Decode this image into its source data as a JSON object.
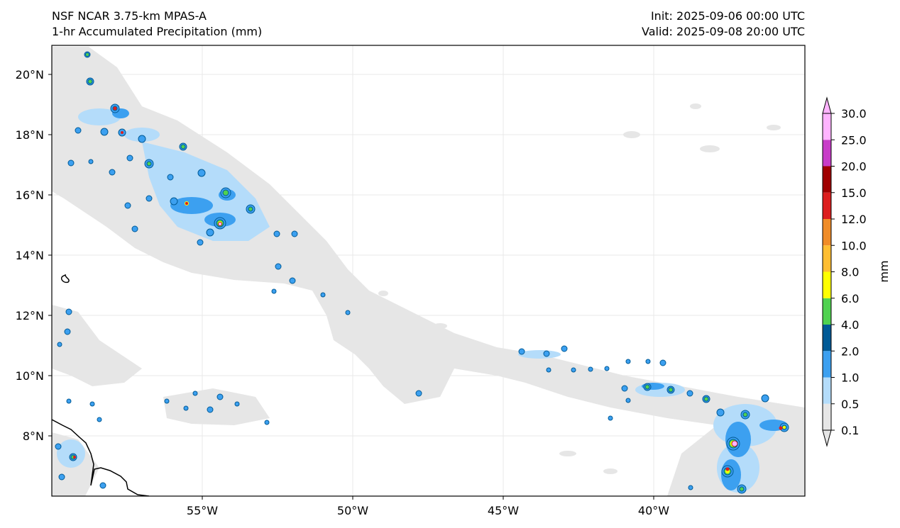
{
  "header": {
    "model": "NSF NCAR 3.75-km MPAS-A",
    "product": "1-hr Accumulated Precipitation (mm)",
    "init": "Init: 2025-09-06 00:00 UTC",
    "valid": "Valid: 2025-09-08 20:00 UTC"
  },
  "map": {
    "lat_ticks": [
      "20°N",
      "18°N",
      "16°N",
      "14°N",
      "12°N",
      "10°N",
      "8°N"
    ],
    "lon_ticks": [
      "55°W",
      "50°W",
      "45°W",
      "40°W"
    ],
    "grid_color": "#e8e8e8",
    "coastline_color": "#000000"
  },
  "colorbar": {
    "label": "mm",
    "levels": [
      "0.1",
      "0.5",
      "1.0",
      "2.0",
      "4.0",
      "6.0",
      "8.0",
      "10.0",
      "12.0",
      "15.0",
      "20.0",
      "25.0",
      "30.0"
    ],
    "colors": [
      "#e6e6e6",
      "#b4dcfa",
      "#3ca0f0",
      "#005a96",
      "#50d250",
      "#ffff00",
      "#ffbe32",
      "#f08c28",
      "#dc1e1e",
      "#a00000",
      "#c83cc8",
      "#ffb4ff"
    ],
    "extend": "both"
  }
}
